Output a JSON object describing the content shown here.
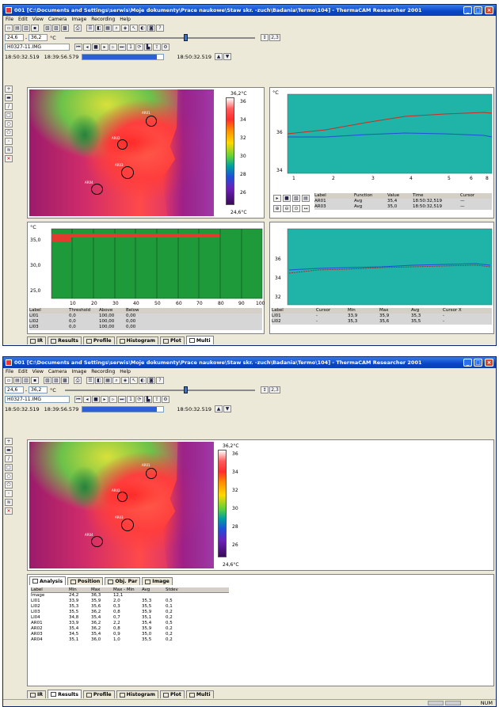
{
  "app": {
    "title": "001 [C:\\Documents and Settings\\serwis\\Moje dokumenty\\Prace naukowe\\Staw skr. -zuch\\Badania\\Termo\\104] - ThermaCAM Researcher 2001",
    "menu": [
      "File",
      "Edit",
      "View",
      "Camera",
      "Image",
      "Recording",
      "Help"
    ],
    "status_right": "NUM"
  },
  "toolbar": {
    "temp_min": "24,6",
    "temp_max": "36,2",
    "unit": "°C",
    "range_button": "2,3",
    "filename": "H0327-11.IMG",
    "counter": "1",
    "time_start": "18:50:32.519",
    "time_mid": "18:39:56.579",
    "time_end": "18:50:32.519",
    "progress_fraction": 0.92
  },
  "ir": {
    "scale_top": "36,2°C",
    "scale_bottom": "24,6°C",
    "scale_ticks": [
      "36",
      "34",
      "32",
      "30",
      "28",
      "26"
    ],
    "rois": [
      "AR01",
      "AR02",
      "AR03",
      "AR04"
    ]
  },
  "top_plot": {
    "y_unit": "°C",
    "y_ticks": [
      "36",
      "34"
    ],
    "x_ticks": [
      "1",
      "2",
      "3",
      "4",
      "5",
      "6",
      "8"
    ],
    "table_headers": [
      "Label",
      "Function",
      "Value",
      "Time",
      "Cursor"
    ],
    "rows": [
      {
        "label": "AR01",
        "function": "Avg",
        "value": "35,4",
        "time": "18:50:32,519",
        "cursor": "—"
      },
      {
        "label": "AR03",
        "function": "Avg",
        "value": "35,0",
        "time": "18:50:32,519",
        "cursor": "—"
      }
    ]
  },
  "histogram": {
    "y_unit": "°C",
    "y_ticks": [
      "35,0",
      "30,0",
      "25,0"
    ],
    "x_ticks": [
      "10",
      "20",
      "30",
      "40",
      "50",
      "60",
      "70",
      "80",
      "90",
      "100"
    ],
    "table_headers": [
      "Label",
      "Threshold",
      "Above",
      "Below"
    ],
    "rows": [
      {
        "label": "LI01",
        "threshold": "0,0",
        "above": "100,00",
        "below": "0,00"
      },
      {
        "label": "LI02",
        "threshold": "0,0",
        "above": "100,00",
        "below": "0,00"
      },
      {
        "label": "LI03",
        "threshold": "0,0",
        "above": "100,00",
        "below": "0,00"
      }
    ]
  },
  "profile": {
    "y_ticks": [
      "36",
      "34",
      "32"
    ],
    "table_headers": [
      "Label",
      "Cursor",
      "Min",
      "Max",
      "Avg",
      "Cursor X"
    ],
    "rows": [
      {
        "label": "LI01",
        "cursor": "-",
        "min": "33,9",
        "max": "35,9",
        "avg": "35,3",
        "cx": "-"
      },
      {
        "label": "LI02",
        "cursor": "-",
        "min": "35,3",
        "max": "35,6",
        "avg": "35,5",
        "cx": "-"
      }
    ]
  },
  "tabs": [
    "IR",
    "Results",
    "Profile",
    "Histogram",
    "Plot",
    "Multi"
  ],
  "results": {
    "subtabs": [
      "Analysis",
      "Position",
      "Obj. Par",
      "Image"
    ],
    "headers": [
      "Label",
      "Min",
      "Max",
      "Max - Min",
      "Avg",
      "Stdev"
    ],
    "rows": [
      [
        "Image",
        "24,2",
        "36,3",
        "12,1",
        "",
        ""
      ],
      [
        "LI01",
        "33,9",
        "35,9",
        "2,0",
        "35,3",
        "0,5"
      ],
      [
        "LI02",
        "35,3",
        "35,6",
        "0,3",
        "35,5",
        "0,1"
      ],
      [
        "LI03",
        "35,5",
        "36,2",
        "0,8",
        "35,9",
        "0,2"
      ],
      [
        "LI04",
        "34,8",
        "35,4",
        "0,7",
        "35,1",
        "0,2"
      ],
      [
        "AR01",
        "33,9",
        "36,2",
        "2,2",
        "35,4",
        "0,5"
      ],
      [
        "AR02",
        "35,4",
        "36,2",
        "0,8",
        "35,9",
        "0,2"
      ],
      [
        "AR03",
        "34,5",
        "35,4",
        "0,9",
        "35,0",
        "0,2"
      ],
      [
        "AR04",
        "35,1",
        "36,0",
        "1,0",
        "35,5",
        "0,2"
      ]
    ]
  },
  "colors": {
    "title_bar": "#0846c9",
    "plot_bg": "#20b3a8",
    "hist_bar": "#1f9a3a",
    "hist_marker": "#e33b2e"
  }
}
